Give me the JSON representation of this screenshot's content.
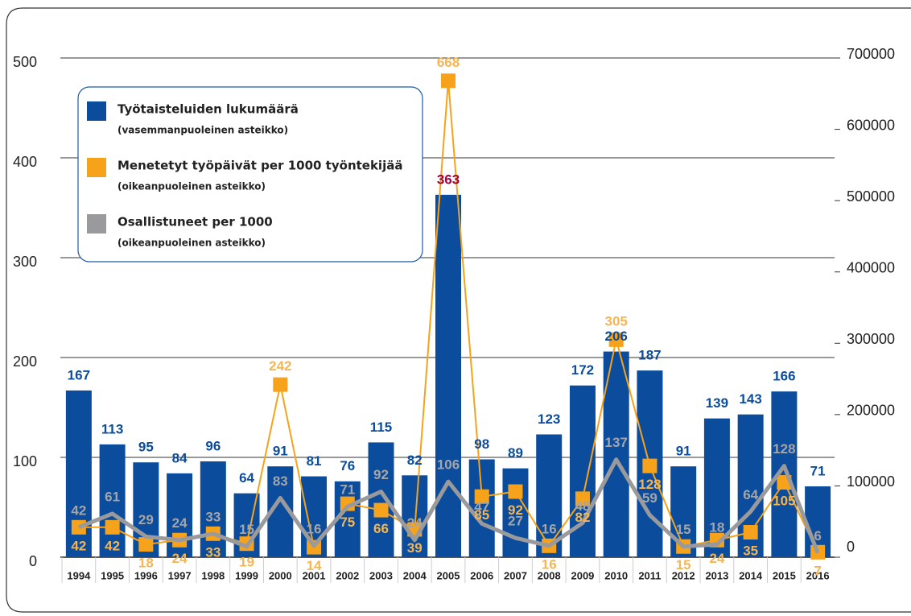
{
  "chart_data": {
    "type": "bar",
    "categories": [
      "1994",
      "1995",
      "1996",
      "1997",
      "1998",
      "1999",
      "2000",
      "2001",
      "2002",
      "2003",
      "2004",
      "2005",
      "2006",
      "2007",
      "2008",
      "2009",
      "2010",
      "2011",
      "2012",
      "2013",
      "2014",
      "2015",
      "2016"
    ],
    "ylim": [
      0,
      500
    ],
    "yticks": [
      0,
      100,
      200,
      300,
      400,
      500
    ],
    "y2lim": [
      0,
      700000
    ],
    "y2ticks": [
      0,
      100000,
      200000,
      300000,
      400000,
      500000,
      600000,
      700000
    ],
    "grid": true,
    "legend": "upper left",
    "series": [
      {
        "name": "Työtaisteluiden lukumäärä",
        "description": "(vasemmanpuoleinen asteikko)",
        "type": "bar",
        "color": "#0b4d9c",
        "label_color": "#0b4d9c",
        "highlight_color": "#a3003d",
        "highlight_index": 11,
        "values": [
          167,
          113,
          95,
          84,
          96,
          64,
          91,
          81,
          76,
          115,
          82,
          363,
          98,
          89,
          123,
          172,
          206,
          187,
          91,
          139,
          143,
          166,
          71
        ]
      },
      {
        "name": "Menetetyt työpäivät per 1000 työntekijää",
        "description": "(oikeanpuoleinen asteikko)",
        "type": "line",
        "axis": "y2",
        "color": "#f7a21b",
        "label_color": "#f6b553",
        "values": [
          42000,
          42000,
          18000,
          24000,
          33000,
          19000,
          242000,
          14000,
          75000,
          66000,
          39000,
          668000,
          85000,
          92000,
          16000,
          82000,
          305000,
          128000,
          15000,
          24000,
          35000,
          105000,
          7000
        ],
        "value_labels": [
          "42",
          "42",
          "18",
          "24",
          "33",
          "19",
          "242",
          "14",
          "75",
          "66",
          "39",
          "668",
          "85",
          "92",
          "16",
          "82",
          "305",
          "128",
          "15",
          "24",
          "35",
          "105",
          "7"
        ]
      },
      {
        "name": "Osallistuneet per 1000",
        "description": "(oikeanpuoleinen asteikko)",
        "type": "line",
        "axis": "y2",
        "color": "#9a9a9c",
        "label_color": "#a5a5a7",
        "values": [
          42000,
          61000,
          29000,
          24000,
          33000,
          15000,
          83000,
          16000,
          71000,
          92000,
          24000,
          106000,
          47000,
          27000,
          16000,
          48000,
          137000,
          59000,
          15000,
          18000,
          64000,
          128000,
          6000
        ],
        "value_labels": [
          "42",
          "61",
          "29",
          "24",
          "33",
          "15",
          "83",
          "16",
          "71",
          "92",
          "24",
          "106",
          "47",
          "27",
          "16",
          "48",
          "137",
          "59",
          "15",
          "18",
          "64",
          "128",
          "6"
        ]
      }
    ]
  }
}
